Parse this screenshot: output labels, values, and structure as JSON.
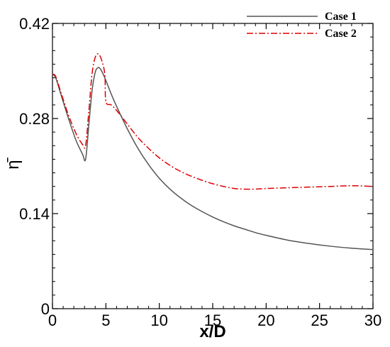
{
  "chart_data": {
    "type": "line",
    "xlabel": "x/D",
    "ylabel": "η̄",
    "xlim": [
      0,
      30
    ],
    "ylim": [
      0,
      0.42
    ],
    "xticks": [
      0,
      5,
      10,
      15,
      20,
      25,
      30
    ],
    "yticks": [
      0,
      0.14,
      0.28,
      0.42
    ],
    "xtick_labels": [
      "0",
      "5",
      "10",
      "15",
      "20",
      "25",
      "30"
    ],
    "ytick_labels": [
      "0",
      "0.14",
      "0.28",
      "0.42"
    ],
    "grid": false,
    "legend_position": "top-right",
    "series": [
      {
        "name": "Case 1",
        "color": "#555555",
        "line_style": "solid",
        "x": [
          0,
          0.3,
          0.8,
          1.5,
          2.2,
          2.8,
          3.1,
          3.4,
          3.7,
          4.0,
          4.3,
          4.6,
          5.0,
          5.5,
          6,
          7,
          8,
          9,
          10,
          11,
          12,
          13,
          14,
          15,
          16,
          17,
          18,
          19,
          20,
          22,
          24,
          26,
          28,
          30
        ],
        "y": [
          0.345,
          0.34,
          0.315,
          0.28,
          0.248,
          0.228,
          0.22,
          0.27,
          0.32,
          0.348,
          0.355,
          0.35,
          0.336,
          0.316,
          0.298,
          0.265,
          0.236,
          0.212,
          0.192,
          0.176,
          0.163,
          0.152,
          0.143,
          0.135,
          0.128,
          0.122,
          0.117,
          0.112,
          0.108,
          0.101,
          0.096,
          0.092,
          0.089,
          0.087
        ]
      },
      {
        "name": "Case 2",
        "color": "#dd0000",
        "line_style": "dashdot",
        "x": [
          0,
          0.3,
          0.8,
          1.5,
          2.2,
          2.8,
          3.1,
          3.4,
          3.7,
          4.0,
          4.3,
          4.6,
          4.9,
          5.0,
          5.5,
          6,
          7,
          8,
          9,
          10,
          11,
          12,
          13,
          14,
          15,
          16,
          17,
          18,
          19,
          20,
          22,
          24,
          26,
          28,
          30
        ],
        "y": [
          0.345,
          0.342,
          0.318,
          0.285,
          0.258,
          0.242,
          0.24,
          0.29,
          0.345,
          0.37,
          0.375,
          0.366,
          0.345,
          0.305,
          0.3,
          0.292,
          0.272,
          0.252,
          0.236,
          0.222,
          0.211,
          0.202,
          0.195,
          0.189,
          0.184,
          0.18,
          0.177,
          0.176,
          0.176,
          0.177,
          0.178,
          0.179,
          0.18,
          0.181,
          0.18
        ]
      }
    ]
  }
}
